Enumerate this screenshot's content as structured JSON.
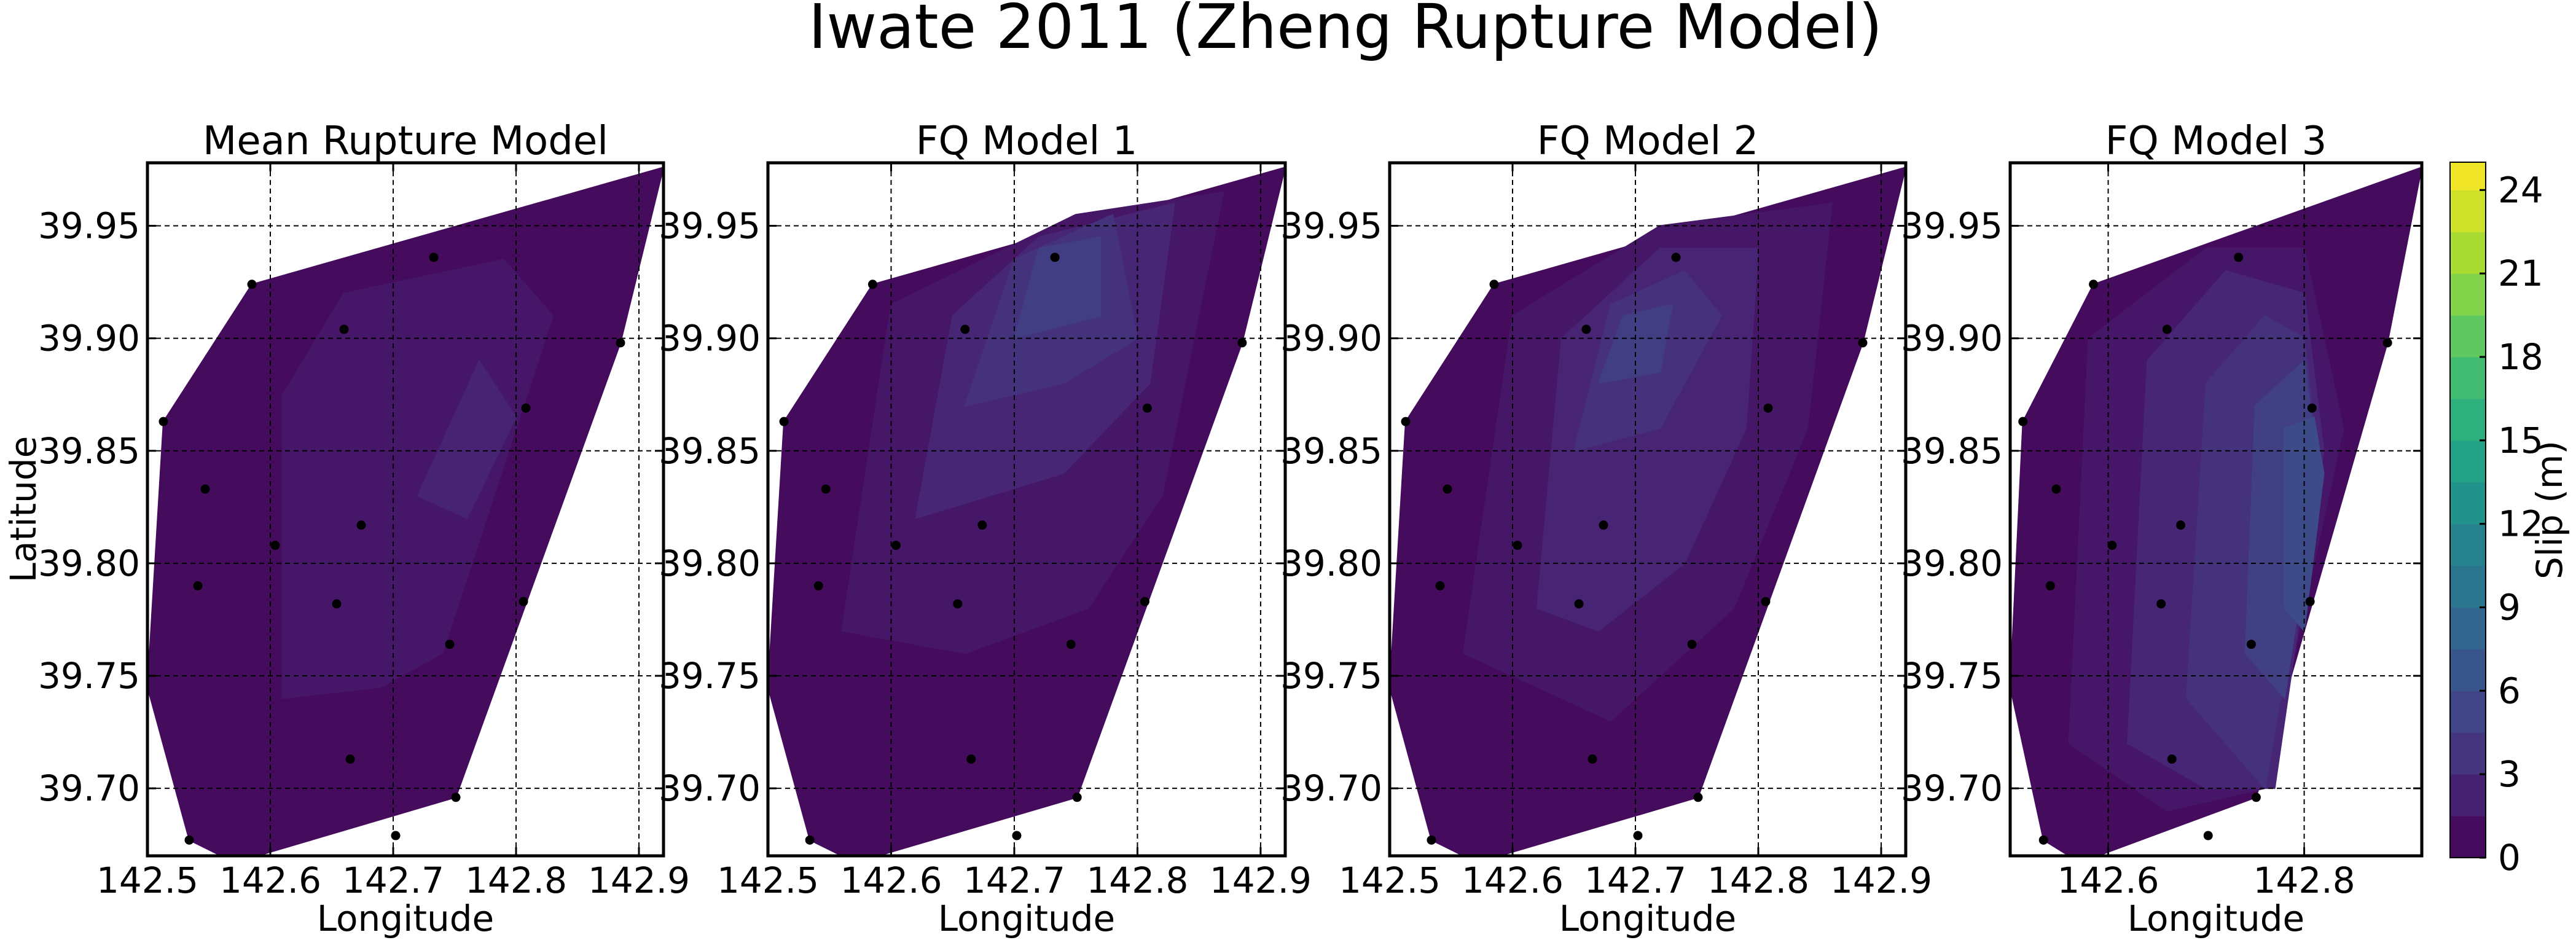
{
  "figure": {
    "title": "Iwate 2011 (Zheng Rupture Model)"
  },
  "colorbar": {
    "label": "Slip (m)",
    "ticks": [
      0,
      3,
      6,
      9,
      12,
      15,
      18,
      21,
      24
    ],
    "range": [
      0,
      25
    ],
    "colormap": [
      "#440154",
      "#482878",
      "#3e4989",
      "#31688e",
      "#26828e",
      "#1f9e89",
      "#35b779",
      "#6ece58",
      "#b5de2b",
      "#fde725"
    ]
  },
  "chart_data": [
    {
      "type": "heatmap",
      "title": "Mean Rupture Model",
      "xlabel": "Longitude",
      "ylabel": "Latitude",
      "xlim": [
        142.5,
        142.92
      ],
      "ylim": [
        39.67,
        39.978
      ],
      "xticks": [
        "142.5",
        "142.6",
        "142.7",
        "142.8",
        "142.9"
      ],
      "yticks": [
        "39.70",
        "39.75",
        "39.80",
        "39.85",
        "39.90",
        "39.95"
      ],
      "grid": true,
      "outline": [
        [
          142.5,
          39.745
        ],
        [
          142.513,
          39.863
        ],
        [
          142.585,
          39.924
        ],
        [
          142.92,
          39.976
        ],
        [
          142.885,
          39.898
        ],
        [
          142.751,
          39.696
        ],
        [
          142.571,
          39.667
        ],
        [
          142.534,
          39.677
        ]
      ],
      "patches": [
        {
          "slip": 0.7,
          "poly": [
            [
              142.5,
              39.745
            ],
            [
              142.513,
              39.863
            ],
            [
              142.585,
              39.924
            ],
            [
              142.92,
              39.976
            ],
            [
              142.885,
              39.898
            ],
            [
              142.751,
              39.696
            ],
            [
              142.571,
              39.667
            ],
            [
              142.534,
              39.677
            ]
          ]
        },
        {
          "slip": 1.6,
          "poly": [
            [
              142.61,
              39.74
            ],
            [
              142.61,
              39.875
            ],
            [
              142.66,
              39.92
            ],
            [
              142.79,
              39.935
            ],
            [
              142.83,
              39.91
            ],
            [
              142.74,
              39.76
            ],
            [
              142.69,
              39.745
            ]
          ]
        },
        {
          "slip": 2.4,
          "poly": [
            [
              142.72,
              39.83
            ],
            [
              142.77,
              39.89
            ],
            [
              142.8,
              39.865
            ],
            [
              142.76,
              39.82
            ]
          ]
        }
      ],
      "stations": [
        [
          142.585,
          39.924
        ],
        [
          142.513,
          39.863
        ],
        [
          142.66,
          39.904
        ],
        [
          142.733,
          39.936
        ],
        [
          142.885,
          39.898
        ],
        [
          142.808,
          39.869
        ],
        [
          142.547,
          39.833
        ],
        [
          142.674,
          39.817
        ],
        [
          142.604,
          39.808
        ],
        [
          142.541,
          39.79
        ],
        [
          142.654,
          39.782
        ],
        [
          142.806,
          39.783
        ],
        [
          142.746,
          39.764
        ],
        [
          142.665,
          39.713
        ],
        [
          142.751,
          39.696
        ],
        [
          142.534,
          39.677
        ],
        [
          142.702,
          39.679
        ]
      ]
    },
    {
      "type": "heatmap",
      "title": "FQ Model 1",
      "xlabel": "Longitude",
      "ylabel": "",
      "xlim": [
        142.5,
        142.92
      ],
      "ylim": [
        39.67,
        39.978
      ],
      "xticks": [
        "142.5",
        "142.6",
        "142.7",
        "142.8",
        "142.9"
      ],
      "yticks": [
        "39.70",
        "39.75",
        "39.80",
        "39.85",
        "39.90",
        "39.95"
      ],
      "grid": true,
      "outline": [
        [
          142.5,
          39.745
        ],
        [
          142.513,
          39.863
        ],
        [
          142.585,
          39.924
        ],
        [
          142.92,
          39.976
        ],
        [
          142.885,
          39.898
        ],
        [
          142.751,
          39.696
        ],
        [
          142.571,
          39.667
        ],
        [
          142.534,
          39.677
        ]
      ],
      "patches": [
        {
          "slip": 0.7,
          "poly": [
            [
              142.5,
              39.745
            ],
            [
              142.513,
              39.863
            ],
            [
              142.585,
              39.924
            ],
            [
              142.92,
              39.976
            ],
            [
              142.885,
              39.898
            ],
            [
              142.751,
              39.696
            ],
            [
              142.571,
              39.667
            ],
            [
              142.534,
              39.677
            ]
          ]
        },
        {
          "slip": 1.5,
          "poly": [
            [
              142.56,
              39.77
            ],
            [
              142.6,
              39.915
            ],
            [
              142.75,
              39.955
            ],
            [
              142.87,
              39.965
            ],
            [
              142.82,
              39.83
            ],
            [
              142.76,
              39.78
            ],
            [
              142.66,
              39.76
            ]
          ]
        },
        {
          "slip": 2.6,
          "poly": [
            [
              142.62,
              39.82
            ],
            [
              142.65,
              39.91
            ],
            [
              142.72,
              39.945
            ],
            [
              142.83,
              39.96
            ],
            [
              142.81,
              39.88
            ],
            [
              142.74,
              39.84
            ]
          ]
        },
        {
          "slip": 3.6,
          "poly": [
            [
              142.66,
              39.87
            ],
            [
              142.7,
              39.935
            ],
            [
              142.78,
              39.955
            ],
            [
              142.8,
              39.9
            ],
            [
              142.74,
              39.88
            ]
          ]
        },
        {
          "slip": 4.6,
          "poly": [
            [
              142.7,
              39.9
            ],
            [
              142.72,
              39.94
            ],
            [
              142.77,
              39.945
            ],
            [
              142.77,
              39.91
            ]
          ]
        }
      ],
      "stations": [
        [
          142.585,
          39.924
        ],
        [
          142.513,
          39.863
        ],
        [
          142.66,
          39.904
        ],
        [
          142.733,
          39.936
        ],
        [
          142.885,
          39.898
        ],
        [
          142.808,
          39.869
        ],
        [
          142.547,
          39.833
        ],
        [
          142.674,
          39.817
        ],
        [
          142.604,
          39.808
        ],
        [
          142.541,
          39.79
        ],
        [
          142.654,
          39.782
        ],
        [
          142.806,
          39.783
        ],
        [
          142.746,
          39.764
        ],
        [
          142.665,
          39.713
        ],
        [
          142.751,
          39.696
        ],
        [
          142.534,
          39.677
        ],
        [
          142.702,
          39.679
        ]
      ]
    },
    {
      "type": "heatmap",
      "title": "FQ Model 2",
      "xlabel": "Longitude",
      "ylabel": "",
      "xlim": [
        142.5,
        142.92
      ],
      "ylim": [
        39.67,
        39.978
      ],
      "xticks": [
        "142.5",
        "142.6",
        "142.7",
        "142.8",
        "142.9"
      ],
      "yticks": [
        "39.70",
        "39.75",
        "39.80",
        "39.85",
        "39.90",
        "39.95"
      ],
      "grid": true,
      "outline": [
        [
          142.5,
          39.745
        ],
        [
          142.513,
          39.863
        ],
        [
          142.585,
          39.924
        ],
        [
          142.92,
          39.976
        ],
        [
          142.885,
          39.898
        ],
        [
          142.751,
          39.696
        ],
        [
          142.571,
          39.667
        ],
        [
          142.534,
          39.677
        ]
      ],
      "patches": [
        {
          "slip": 0.7,
          "poly": [
            [
              142.5,
              39.745
            ],
            [
              142.513,
              39.863
            ],
            [
              142.585,
              39.924
            ],
            [
              142.92,
              39.976
            ],
            [
              142.885,
              39.898
            ],
            [
              142.751,
              39.696
            ],
            [
              142.571,
              39.667
            ],
            [
              142.534,
              39.677
            ]
          ]
        },
        {
          "slip": 1.5,
          "poly": [
            [
              142.56,
              39.76
            ],
            [
              142.6,
              39.91
            ],
            [
              142.72,
              39.95
            ],
            [
              142.86,
              39.96
            ],
            [
              142.84,
              39.86
            ],
            [
              142.78,
              39.78
            ],
            [
              142.68,
              39.73
            ]
          ]
        },
        {
          "slip": 2.5,
          "poly": [
            [
              142.62,
              39.78
            ],
            [
              142.64,
              39.9
            ],
            [
              142.72,
              39.94
            ],
            [
              142.8,
              39.94
            ],
            [
              142.79,
              39.86
            ],
            [
              142.74,
              39.8
            ],
            [
              142.67,
              39.77
            ]
          ]
        },
        {
          "slip": 3.5,
          "poly": [
            [
              142.65,
              39.85
            ],
            [
              142.68,
              39.915
            ],
            [
              142.74,
              39.93
            ],
            [
              142.77,
              39.91
            ],
            [
              142.72,
              39.86
            ]
          ]
        },
        {
          "slip": 4.6,
          "poly": [
            [
              142.67,
              39.88
            ],
            [
              142.69,
              39.91
            ],
            [
              142.73,
              39.915
            ],
            [
              142.72,
              39.885
            ]
          ]
        }
      ],
      "stations": [
        [
          142.585,
          39.924
        ],
        [
          142.513,
          39.863
        ],
        [
          142.66,
          39.904
        ],
        [
          142.733,
          39.936
        ],
        [
          142.885,
          39.898
        ],
        [
          142.808,
          39.869
        ],
        [
          142.547,
          39.833
        ],
        [
          142.674,
          39.817
        ],
        [
          142.604,
          39.808
        ],
        [
          142.541,
          39.79
        ],
        [
          142.654,
          39.782
        ],
        [
          142.806,
          39.783
        ],
        [
          142.746,
          39.764
        ],
        [
          142.665,
          39.713
        ],
        [
          142.751,
          39.696
        ],
        [
          142.534,
          39.677
        ],
        [
          142.702,
          39.679
        ]
      ]
    },
    {
      "type": "heatmap",
      "title": "FQ Model 3",
      "xlabel": "Longitude",
      "ylabel": "",
      "xlim": [
        142.5,
        142.92
      ],
      "ylim": [
        39.67,
        39.978
      ],
      "xticks": [
        "142.6",
        "142.8"
      ],
      "yticks": [
        "39.70",
        "39.75",
        "39.80",
        "39.85",
        "39.90",
        "39.95"
      ],
      "grid": true,
      "outline": [
        [
          142.5,
          39.745
        ],
        [
          142.513,
          39.863
        ],
        [
          142.585,
          39.924
        ],
        [
          142.92,
          39.976
        ],
        [
          142.885,
          39.898
        ],
        [
          142.751,
          39.696
        ],
        [
          142.571,
          39.667
        ],
        [
          142.534,
          39.677
        ]
      ],
      "patches": [
        {
          "slip": 0.7,
          "poly": [
            [
              142.5,
              39.745
            ],
            [
              142.513,
              39.863
            ],
            [
              142.585,
              39.924
            ],
            [
              142.92,
              39.976
            ],
            [
              142.885,
              39.898
            ],
            [
              142.751,
              39.696
            ],
            [
              142.571,
              39.667
            ],
            [
              142.534,
              39.677
            ]
          ]
        },
        {
          "slip": 1.6,
          "poly": [
            [
              142.56,
              39.72
            ],
            [
              142.58,
              39.9
            ],
            [
              142.7,
              39.94
            ],
            [
              142.8,
              39.94
            ],
            [
              142.84,
              39.86
            ],
            [
              142.76,
              39.7
            ],
            [
              142.66,
              39.69
            ]
          ]
        },
        {
          "slip": 2.6,
          "poly": [
            [
              142.62,
              39.72
            ],
            [
              142.64,
              39.89
            ],
            [
              142.72,
              39.93
            ],
            [
              142.8,
              39.92
            ],
            [
              142.82,
              39.85
            ],
            [
              142.77,
              39.7
            ],
            [
              142.7,
              39.7
            ]
          ]
        },
        {
          "slip": 3.6,
          "poly": [
            [
              142.68,
              39.74
            ],
            [
              142.7,
              39.88
            ],
            [
              142.76,
              39.91
            ],
            [
              142.8,
              39.9
            ],
            [
              142.815,
              39.84
            ],
            [
              142.76,
              39.7
            ],
            [
              142.74,
              39.71
            ]
          ]
        },
        {
          "slip": 4.8,
          "poly": [
            [
              142.74,
              39.76
            ],
            [
              142.75,
              39.87
            ],
            [
              142.8,
              39.89
            ],
            [
              142.815,
              39.84
            ],
            [
              142.78,
              39.74
            ]
          ]
        },
        {
          "slip": 5.8,
          "poly": [
            [
              142.78,
              39.78
            ],
            [
              142.78,
              39.86
            ],
            [
              142.81,
              39.865
            ],
            [
              142.82,
              39.84
            ],
            [
              142.8,
              39.77
            ]
          ]
        }
      ],
      "stations": [
        [
          142.585,
          39.924
        ],
        [
          142.513,
          39.863
        ],
        [
          142.66,
          39.904
        ],
        [
          142.733,
          39.936
        ],
        [
          142.885,
          39.898
        ],
        [
          142.808,
          39.869
        ],
        [
          142.547,
          39.833
        ],
        [
          142.674,
          39.817
        ],
        [
          142.604,
          39.808
        ],
        [
          142.541,
          39.79
        ],
        [
          142.654,
          39.782
        ],
        [
          142.806,
          39.783
        ],
        [
          142.746,
          39.764
        ],
        [
          142.665,
          39.713
        ],
        [
          142.751,
          39.696
        ],
        [
          142.534,
          39.677
        ],
        [
          142.702,
          39.679
        ]
      ]
    }
  ]
}
